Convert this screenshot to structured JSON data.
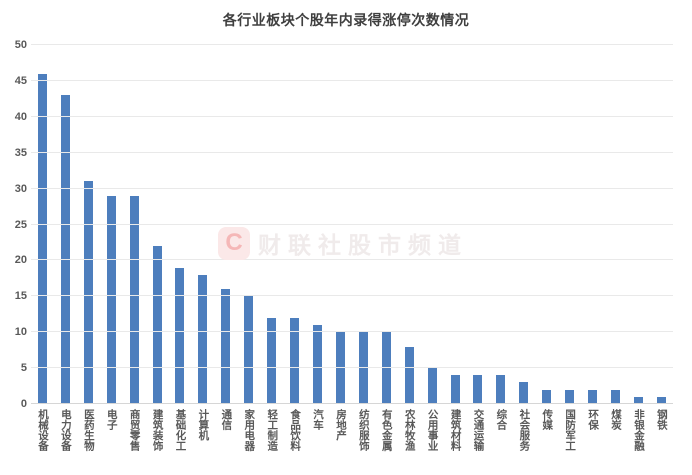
{
  "watermark": {
    "logo_letter": "C",
    "text": "财联社股市频道",
    "logo_bg_color": "#fbe8e8",
    "logo_letter_color": "#f5b7b7",
    "text_color": "#f0ebeb"
  },
  "colors": {
    "bar": "#4d7ebd",
    "gridline": "#e9e9e9",
    "axis_line": "#d6d6d6",
    "title_text": "#3f3f3f",
    "tick_text": "#595959",
    "background": "#ffffff"
  },
  "chart_data": {
    "type": "bar",
    "title": "各行业板块个股年内录得涨停次数情况",
    "categories": [
      "机械设备",
      "电力设备",
      "医药生物",
      "电子",
      "商贸零售",
      "建筑装饰",
      "基础化工",
      "计算机",
      "通信",
      "家用电器",
      "轻工制造",
      "食品饮料",
      "汽车",
      "房地产",
      "纺织服饰",
      "有色金属",
      "农林牧渔",
      "公用事业",
      "建筑材料",
      "交通运输",
      "综合",
      "社会服务",
      "传媒",
      "国防军工",
      "环保",
      "煤炭",
      "非银金融",
      "钢铁"
    ],
    "values": [
      46,
      43,
      31,
      29,
      29,
      22,
      19,
      18,
      16,
      15,
      12,
      12,
      11,
      10,
      10,
      10,
      8,
      5,
      4,
      4,
      4,
      3,
      2,
      2,
      2,
      2,
      1,
      1
    ],
    "xlabel": "",
    "ylabel": "",
    "ylim": [
      0,
      50
    ],
    "ytick_step": 5,
    "yticks": [
      0,
      5,
      10,
      15,
      20,
      25,
      30,
      35,
      40,
      45,
      50
    ],
    "grid": true,
    "legend": "none",
    "bar_color": "#4d7ebd",
    "x_label_orientation": "vertical-stacked"
  }
}
